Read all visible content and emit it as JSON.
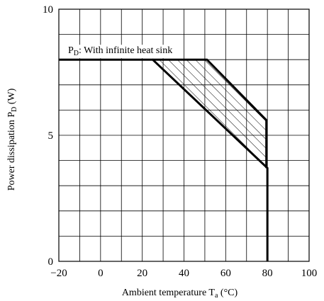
{
  "chart_data": {
    "type": "line",
    "title": "",
    "xlabel": "Ambient temperature T",
    "xlabel_subscript": "a",
    "xlabel_unit": " (°C)",
    "ylabel": "Power dissipation P",
    "ylabel_subscript": "D",
    "ylabel_unit": " (W)",
    "xlim": [
      -20,
      100
    ],
    "ylim": [
      0,
      10
    ],
    "x_ticks": [
      -20,
      0,
      20,
      40,
      60,
      80,
      100
    ],
    "x_tick_labels": [
      "−20",
      "0",
      "20",
      "40",
      "60",
      "80",
      "100"
    ],
    "y_ticks": [
      0,
      5,
      10
    ],
    "y_tick_labels": [
      "0",
      "5",
      "10"
    ],
    "x_minor_step": 10,
    "y_minor_step": 1,
    "grid": true,
    "series": [
      {
        "x": [
          -20,
          25,
          80,
          80
        ],
        "y": [
          8,
          8,
          3.7,
          0
        ]
      },
      {
        "x": [
          25,
          51,
          79.5,
          79.5
        ],
        "y": [
          8,
          8,
          5.6,
          3.7
        ]
      }
    ],
    "hatched_region": {
      "x": [
        25,
        51,
        79.5,
        79.5
      ],
      "y": [
        8,
        8,
        5.6,
        3.7
      ]
    },
    "annotation": {
      "prefix": "P",
      "subscript": "D",
      "text": ": With infinite heat sink",
      "x": -20,
      "y": 8
    }
  }
}
